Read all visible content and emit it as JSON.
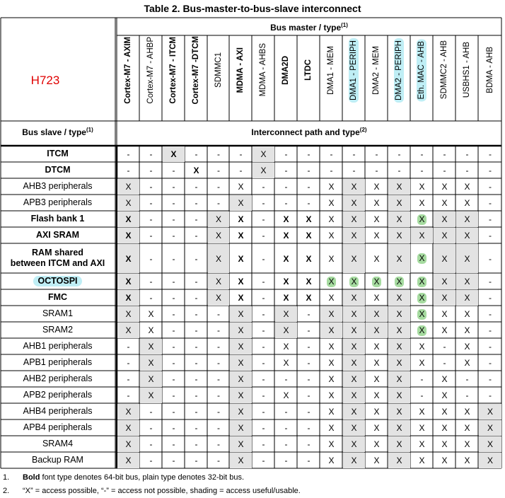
{
  "title": "Table 2. Bus-master-to-bus-slave interconnect",
  "device_label": "H723",
  "bus_master_header": "Bus master / type",
  "bus_master_sup": "(1)",
  "bus_slave_header": "Bus slave / type",
  "bus_slave_sup": "(1)",
  "interconnect_header": "Interconnect path and type",
  "interconnect_sup": "(2)",
  "masters": [
    {
      "label": "Cortex-M7 - AXIM",
      "bold": true,
      "cyan": false
    },
    {
      "label": "Cortex-M7 - AHBP",
      "bold": false,
      "cyan": false
    },
    {
      "label": "Cortex-M7 - ITCM",
      "bold": true,
      "cyan": false
    },
    {
      "label": "Cortex-M7 -DTCM",
      "bold": true,
      "cyan": false
    },
    {
      "label": "SDMMC1",
      "bold": false,
      "cyan": false
    },
    {
      "label": "MDMA - AXI",
      "bold": true,
      "cyan": false
    },
    {
      "label": "MDMA - AHBS",
      "bold": false,
      "cyan": false
    },
    {
      "label": "DMA2D",
      "bold": true,
      "cyan": false
    },
    {
      "label": "LTDC",
      "bold": true,
      "cyan": false
    },
    {
      "label": "DMA1 - MEM",
      "bold": false,
      "cyan": false
    },
    {
      "label": "DMA1 - PERIPH",
      "bold": false,
      "cyan": true
    },
    {
      "label": "DMA2 - MEM",
      "bold": false,
      "cyan": false
    },
    {
      "label": "DMA2 - PERIPH",
      "bold": false,
      "cyan": true
    },
    {
      "label": "Eth. MAC - AHB",
      "bold": false,
      "cyan": true
    },
    {
      "label": "SDMMC2 - AHB",
      "bold": false,
      "cyan": false
    },
    {
      "label": "USBHS1 - AHB",
      "bold": false,
      "cyan": false
    },
    {
      "label": "BDMA - AHB",
      "bold": false,
      "cyan": false
    }
  ],
  "rows": [
    {
      "label": "ITCM",
      "bold": true,
      "cyan": false,
      "cells": [
        "-",
        "-",
        "X",
        "-",
        "-",
        "-",
        "X",
        "-",
        "-",
        "-",
        "-",
        "-",
        "-",
        "-",
        "-",
        "-",
        "-"
      ],
      "shade": [
        0,
        0,
        1,
        0,
        0,
        0,
        1,
        0,
        0,
        0,
        0,
        0,
        0,
        0,
        0,
        0,
        0
      ],
      "hl": []
    },
    {
      "label": "DTCM",
      "bold": true,
      "cyan": false,
      "cells": [
        "-",
        "-",
        "-",
        "X",
        "-",
        "-",
        "X",
        "-",
        "-",
        "-",
        "-",
        "-",
        "-",
        "-",
        "-",
        "-",
        "-"
      ],
      "shade": [
        0,
        0,
        0,
        0,
        0,
        0,
        1,
        0,
        0,
        0,
        0,
        0,
        0,
        0,
        0,
        0,
        0
      ],
      "hl": []
    },
    {
      "label": "AHB3 peripherals",
      "bold": false,
      "cyan": false,
      "cells": [
        "X",
        "-",
        "-",
        "-",
        "-",
        "X",
        "-",
        "-",
        "-",
        "X",
        "X",
        "X",
        "X",
        "X",
        "X",
        "X",
        "-"
      ],
      "shade": [
        1,
        0,
        0,
        0,
        0,
        0,
        0,
        0,
        0,
        0,
        1,
        0,
        1,
        0,
        0,
        0,
        0
      ],
      "hl": []
    },
    {
      "label": "APB3 peripherals",
      "bold": false,
      "cyan": false,
      "cells": [
        "X",
        "-",
        "-",
        "-",
        "-",
        "X",
        "-",
        "-",
        "-",
        "X",
        "X",
        "X",
        "X",
        "X",
        "X",
        "X",
        "-"
      ],
      "shade": [
        1,
        0,
        0,
        0,
        0,
        1,
        0,
        0,
        0,
        0,
        1,
        0,
        1,
        0,
        0,
        0,
        0
      ],
      "hl": []
    },
    {
      "label": "Flash bank 1",
      "bold": true,
      "cyan": false,
      "cells": [
        "X",
        "-",
        "-",
        "-",
        "X",
        "X",
        "-",
        "X",
        "X",
        "X",
        "X",
        "X",
        "X",
        "X",
        "X",
        "X",
        "-"
      ],
      "shade": [
        1,
        0,
        0,
        0,
        1,
        0,
        0,
        0,
        0,
        0,
        1,
        0,
        1,
        0,
        1,
        1,
        0
      ],
      "hl": [
        13
      ]
    },
    {
      "label": "AXI SRAM",
      "bold": true,
      "cyan": false,
      "cells": [
        "X",
        "-",
        "-",
        "-",
        "X",
        "X",
        "-",
        "X",
        "X",
        "X",
        "X",
        "X",
        "X",
        "X",
        "X",
        "X",
        "-"
      ],
      "shade": [
        1,
        0,
        0,
        0,
        1,
        0,
        0,
        0,
        0,
        0,
        1,
        0,
        1,
        1,
        1,
        1,
        0
      ],
      "hl": []
    },
    {
      "label": "RAM shared\nbetween ITCM and AXI",
      "bold": true,
      "cyan": false,
      "cells": [
        "X",
        "-",
        "-",
        "-",
        "X",
        "X",
        "-",
        "X",
        "X",
        "X",
        "X",
        "X",
        "X",
        "X",
        "X",
        "X",
        "-"
      ],
      "shade": [
        1,
        0,
        0,
        0,
        1,
        0,
        0,
        0,
        0,
        0,
        1,
        0,
        1,
        0,
        1,
        1,
        0
      ],
      "hl": [
        13
      ]
    },
    {
      "label": "OCTOSPI",
      "bold": true,
      "cyan": true,
      "cells": [
        "X",
        "-",
        "-",
        "-",
        "X",
        "X",
        "-",
        "X",
        "X",
        "X",
        "X",
        "X",
        "X",
        "X",
        "X",
        "X",
        "-"
      ],
      "shade": [
        1,
        0,
        0,
        0,
        1,
        0,
        0,
        0,
        0,
        0,
        0,
        0,
        0,
        0,
        1,
        1,
        0
      ],
      "hl": [
        9,
        10,
        11,
        12,
        13
      ]
    },
    {
      "label": "FMC",
      "bold": true,
      "cyan": false,
      "cells": [
        "X",
        "-",
        "-",
        "-",
        "X",
        "X",
        "-",
        "X",
        "X",
        "X",
        "X",
        "X",
        "X",
        "X",
        "X",
        "X",
        "-"
      ],
      "shade": [
        1,
        0,
        0,
        0,
        1,
        0,
        0,
        0,
        0,
        0,
        1,
        0,
        1,
        0,
        1,
        1,
        0
      ],
      "hl": [
        13
      ]
    },
    {
      "label": "SRAM1",
      "bold": false,
      "cyan": false,
      "cells": [
        "X",
        "X",
        "-",
        "-",
        "-",
        "X",
        "-",
        "X",
        "-",
        "X",
        "X",
        "X",
        "X",
        "X",
        "X",
        "X",
        "-"
      ],
      "shade": [
        1,
        0,
        0,
        0,
        0,
        1,
        0,
        1,
        0,
        1,
        1,
        1,
        1,
        0,
        0,
        0,
        0
      ],
      "hl": [
        13
      ]
    },
    {
      "label": "SRAM2",
      "bold": false,
      "cyan": false,
      "cells": [
        "X",
        "X",
        "-",
        "-",
        "-",
        "X",
        "-",
        "X",
        "-",
        "X",
        "X",
        "X",
        "X",
        "X",
        "X",
        "X",
        "-"
      ],
      "shade": [
        1,
        0,
        0,
        0,
        0,
        1,
        0,
        1,
        0,
        1,
        1,
        1,
        1,
        0,
        0,
        0,
        0
      ],
      "hl": [
        13
      ]
    },
    {
      "label": "AHB1 peripherals",
      "bold": false,
      "cyan": false,
      "cells": [
        "-",
        "X",
        "-",
        "-",
        "-",
        "X",
        "-",
        "X",
        "-",
        "X",
        "X",
        "X",
        "X",
        "X",
        "-",
        "X",
        "-"
      ],
      "shade": [
        0,
        1,
        0,
        0,
        0,
        1,
        0,
        0,
        0,
        0,
        1,
        0,
        1,
        0,
        0,
        0,
        0
      ],
      "hl": []
    },
    {
      "label": "APB1 peripherals",
      "bold": false,
      "cyan": false,
      "cells": [
        "-",
        "X",
        "-",
        "-",
        "-",
        "X",
        "-",
        "X",
        "-",
        "X",
        "X",
        "X",
        "X",
        "X",
        "-",
        "X",
        "-"
      ],
      "shade": [
        0,
        1,
        0,
        0,
        0,
        1,
        0,
        0,
        0,
        0,
        1,
        0,
        1,
        0,
        0,
        0,
        0
      ],
      "hl": []
    },
    {
      "label": "AHB2 peripherals",
      "bold": false,
      "cyan": false,
      "cells": [
        "-",
        "X",
        "-",
        "-",
        "-",
        "X",
        "-",
        "-",
        "-",
        "X",
        "X",
        "X",
        "X",
        "-",
        "X",
        "-",
        "-"
      ],
      "shade": [
        0,
        1,
        0,
        0,
        0,
        1,
        0,
        0,
        0,
        0,
        1,
        0,
        1,
        0,
        0,
        0,
        0
      ],
      "hl": []
    },
    {
      "label": "APB2 peripherals",
      "bold": false,
      "cyan": false,
      "cells": [
        "-",
        "X",
        "-",
        "-",
        "-",
        "X",
        "-",
        "X",
        "-",
        "X",
        "X",
        "X",
        "X",
        "-",
        "X",
        "-",
        "-"
      ],
      "shade": [
        0,
        1,
        0,
        0,
        0,
        1,
        0,
        0,
        0,
        0,
        1,
        0,
        1,
        0,
        0,
        0,
        0
      ],
      "hl": []
    },
    {
      "label": "AHB4 peripherals",
      "bold": false,
      "cyan": false,
      "cells": [
        "X",
        "-",
        "-",
        "-",
        "-",
        "X",
        "-",
        "-",
        "-",
        "X",
        "X",
        "X",
        "X",
        "X",
        "X",
        "X",
        "X"
      ],
      "shade": [
        1,
        0,
        0,
        0,
        0,
        1,
        0,
        0,
        0,
        0,
        1,
        0,
        1,
        0,
        0,
        0,
        1
      ],
      "hl": []
    },
    {
      "label": "APB4 peripherals",
      "bold": false,
      "cyan": false,
      "cells": [
        "X",
        "-",
        "-",
        "-",
        "-",
        "X",
        "-",
        "-",
        "-",
        "X",
        "X",
        "X",
        "X",
        "X",
        "X",
        "X",
        "X"
      ],
      "shade": [
        1,
        0,
        0,
        0,
        0,
        1,
        0,
        0,
        0,
        0,
        1,
        0,
        1,
        0,
        0,
        0,
        1
      ],
      "hl": []
    },
    {
      "label": "SRAM4",
      "bold": false,
      "cyan": false,
      "cells": [
        "X",
        "-",
        "-",
        "-",
        "-",
        "X",
        "-",
        "-",
        "-",
        "X",
        "X",
        "X",
        "X",
        "X",
        "X",
        "X",
        "X"
      ],
      "shade": [
        1,
        0,
        0,
        0,
        0,
        1,
        0,
        0,
        0,
        0,
        1,
        0,
        1,
        0,
        0,
        0,
        1
      ],
      "hl": []
    },
    {
      "label": "Backup RAM",
      "bold": false,
      "cyan": false,
      "cells": [
        "X",
        "-",
        "-",
        "-",
        "-",
        "X",
        "-",
        "-",
        "-",
        "X",
        "X",
        "X",
        "X",
        "X",
        "X",
        "X",
        "X"
      ],
      "shade": [
        1,
        0,
        0,
        0,
        0,
        1,
        0,
        0,
        0,
        0,
        1,
        0,
        1,
        0,
        0,
        0,
        1
      ],
      "hl": []
    }
  ],
  "notes": [
    {
      "num": "1.",
      "bold": "Bold",
      "text": " font type denotes 64-bit bus, plain type denotes 32-bit bus."
    },
    {
      "num": "2.",
      "bold": "",
      "text": "“X” = access possible, “-” = access not possible, shading = access useful/usable."
    }
  ]
}
